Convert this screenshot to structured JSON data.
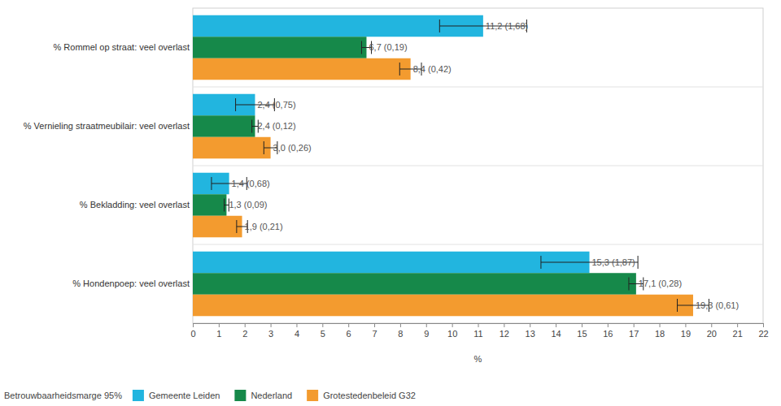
{
  "chart_data": {
    "type": "bar",
    "orientation": "horizontal",
    "categories": [
      "% Rommel op straat: veel overlast",
      "% Vernieling straatmeubilair: veel overlast",
      "% Bekladding: veel overlast",
      "% Hondenpoep: veel overlast"
    ],
    "series": [
      {
        "name": "Gemeente Leiden",
        "color": "#22b5df",
        "values": [
          11.2,
          2.4,
          1.4,
          15.3
        ],
        "errors": [
          1.68,
          0.75,
          0.68,
          1.87
        ],
        "value_labels": [
          "11,2 (1,68)",
          "2,4 (0,75)",
          "1,4 (0,68)",
          "15,3 (1,87)"
        ]
      },
      {
        "name": "Nederland",
        "color": "#16894a",
        "values": [
          6.7,
          2.4,
          1.3,
          17.1
        ],
        "errors": [
          0.19,
          0.12,
          0.09,
          0.28
        ],
        "value_labels": [
          "6,7 (0,19)",
          "2,4 (0,12)",
          "1,3 (0,09)",
          "17,1 (0,28)"
        ]
      },
      {
        "name": "Grotestedenbeleid G32",
        "color": "#f39b2f",
        "values": [
          8.4,
          3.0,
          1.9,
          19.3
        ],
        "errors": [
          0.42,
          0.26,
          0.21,
          0.61
        ],
        "value_labels": [
          "8,4 (0,42)",
          "3,0 (0,26)",
          "1,9 (0,21)",
          "19,3 (0,61)"
        ]
      }
    ],
    "x_label": "%",
    "legend_title": "Betrouwbaarheidsmarge 95%",
    "xlim": [
      0,
      22
    ],
    "xticks": [
      0,
      1,
      2,
      3,
      4,
      5,
      6,
      7,
      8,
      9,
      10,
      11,
      12,
      13,
      14,
      15,
      16,
      17,
      18,
      19,
      20,
      21,
      22
    ],
    "grid": false,
    "data_labels": true,
    "legend": "bottom"
  }
}
